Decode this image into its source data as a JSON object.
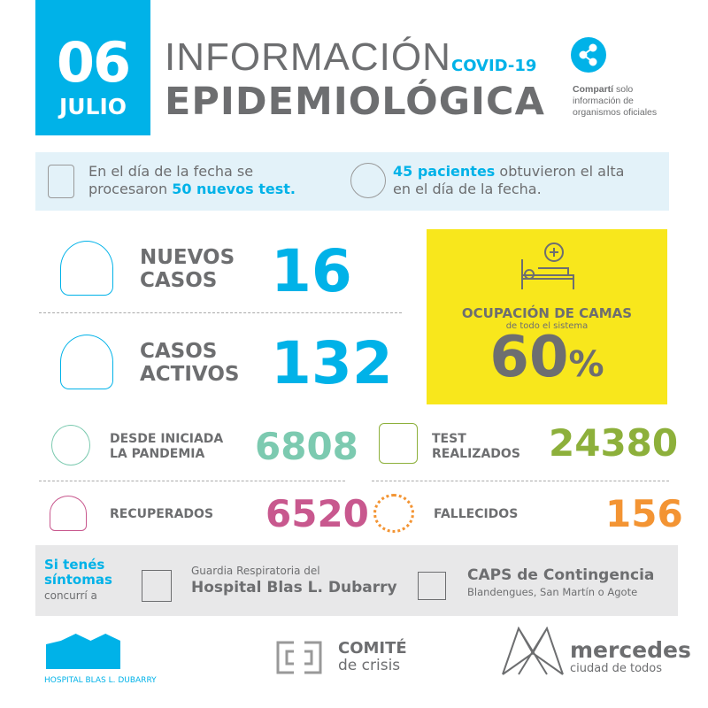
{
  "header": {
    "day": "06",
    "month": "JULIO",
    "title_line1": "INFORMACIÓN",
    "tag": "COVID-19",
    "title_line2": "EPIDEMIOLÓGICA",
    "share_bold": "Compartí",
    "share_rest": " solo",
    "share_line2": "información de",
    "share_line3": "organismos oficiales"
  },
  "info": {
    "left_pre": "En el día de la fecha se",
    "left_mid": "procesaron ",
    "left_hl": "50 nuevos test.",
    "right_hl": "45 pacientes",
    "right_rest": " obtuvieron el alta",
    "right_line2": "en el día de la fecha."
  },
  "stats": {
    "nuevos": {
      "label1": "NUEVOS",
      "label2": "CASOS",
      "value": "16"
    },
    "activos": {
      "label1": "CASOS",
      "label2": "ACTIVOS",
      "value": "132"
    },
    "camas": {
      "title": "OCUPACIÓN DE CAMAS",
      "subtitle": "de todo el sistema",
      "value": "60",
      "unit": "%"
    },
    "pandemia": {
      "label1": "DESDE INICIADA",
      "label2": "LA PANDEMIA",
      "value": "6808"
    },
    "test": {
      "label1": "TEST",
      "label2": "REALIZADOS",
      "value": "24380"
    },
    "recuperados": {
      "label": "RECUPERADOS",
      "value": "6520"
    },
    "fallecidos": {
      "label": "FALLECIDOS",
      "value": "156"
    }
  },
  "contact": {
    "l1": "Si tenés",
    "l2": "síntomas",
    "l3": "concurrí a",
    "h_small": "Guardia Respiratoria del",
    "h_big": "Hospital Blas L. Dubarry",
    "caps_big": "CAPS de Contingencia",
    "caps_small": "Blandengues, San Martín o Agote"
  },
  "footer": {
    "hospital": "HOSPITAL BLAS L. DUBARRY",
    "comite1": "COMITÉ",
    "comite2": "de crisis",
    "mercedes1": "mercedes",
    "mercedes2": "ciudad de todos"
  },
  "colors": {
    "blue": "#00b2e8",
    "gray": "#6d6e70",
    "yellow": "#f8e71c",
    "teal": "#7ccab0",
    "green": "#8db03b",
    "pink": "#c8588e",
    "orange": "#f39433"
  }
}
